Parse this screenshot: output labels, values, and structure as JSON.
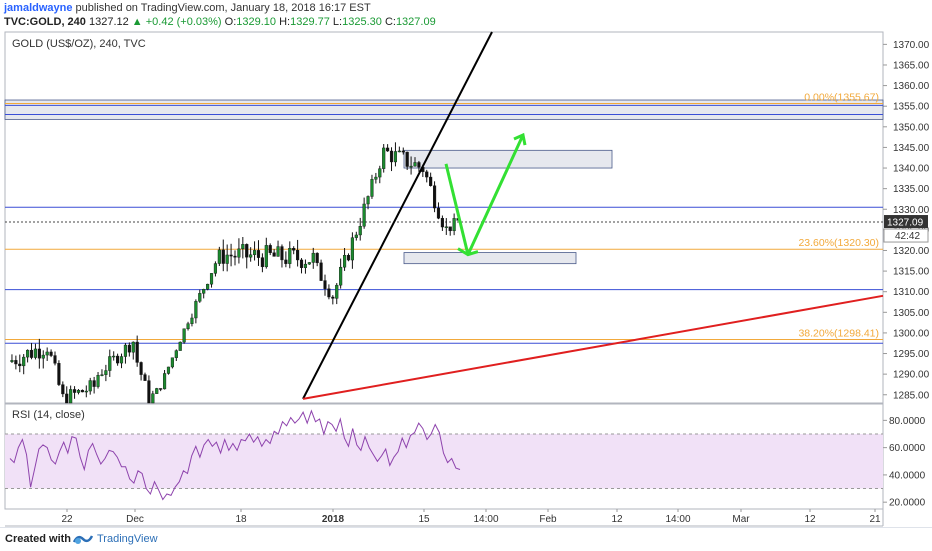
{
  "header": {
    "author": "jamaldwayne",
    "published_text": " published on TradingView.com, January 18, 2018 16:17 EST"
  },
  "ohlc": {
    "symbol": "TVC:GOLD, 240",
    "last": "1327.12",
    "change": "▲ +0.42 (+0.03%)",
    "o_label": "O:",
    "o": "1329.10",
    "h_label": "H:",
    "h": "1329.77",
    "l_label": "L:",
    "l": "1325.30",
    "c_label": "C:",
    "c": "1327.09"
  },
  "pane_title": "GOLD (US$/OZ), 240, TVC",
  "rsi_title": "RSI (14, close)",
  "footer": {
    "created": "Created with",
    "brand": "TradingView"
  },
  "colors": {
    "candle_up": "#1b8a2e",
    "candle_down": "#111111",
    "trendline": "#000000",
    "support_line": "#e01f1f",
    "arrow": "#33e033",
    "hline": "#3a4fd6",
    "fib": "#f2a93b",
    "rsi_line": "#8e44ad",
    "rsi_fill": "#f1e1f7"
  },
  "chart_data": [
    {
      "type": "candlestick",
      "title": "GOLD (US$/OZ), 240, TVC",
      "ylim": [
        1283,
        1373
      ],
      "y_ticks": [
        1285,
        1290,
        1295,
        1300,
        1305,
        1310,
        1315,
        1320,
        1325,
        1330,
        1335,
        1340,
        1345,
        1350,
        1355,
        1360,
        1365,
        1370
      ],
      "x_tick_labels": [
        "22",
        "Dec",
        "18",
        "2018",
        "15",
        "14:00",
        "Feb",
        "12",
        "14:00",
        "Mar",
        "12",
        "21"
      ],
      "last_price_label": "1327.09",
      "countdown_label": "42:42",
      "candle_segments": [
        {
          "from": 1293.0,
          "to": 1297.0,
          "vol": 2.6,
          "n": 10
        },
        {
          "from": 1297.0,
          "to": 1284.0,
          "vol": 2.2,
          "n": 4
        },
        {
          "from": 1284.0,
          "to": 1287.0,
          "vol": 2.0,
          "n": 8
        },
        {
          "from": 1289.0,
          "to": 1298.0,
          "vol": 1.8,
          "n": 10
        },
        {
          "from": 1296.0,
          "to": 1284.0,
          "vol": 1.8,
          "n": 4
        },
        {
          "from": 1284.0,
          "to": 1286.0,
          "vol": 0.8,
          "n": 2
        },
        {
          "from": 1285.0,
          "to": 1303.0,
          "vol": 1.0,
          "n": 8
        },
        {
          "from": 1303.0,
          "to": 1319.0,
          "vol": 1.4,
          "n": 8
        },
        {
          "from": 1319.0,
          "to": 1318.0,
          "vol": 2.8,
          "n": 24
        },
        {
          "from": 1317.0,
          "to": 1309.0,
          "vol": 2.0,
          "n": 5
        },
        {
          "from": 1309.0,
          "to": 1330.0,
          "vol": 2.2,
          "n": 8
        },
        {
          "from": 1330.0,
          "to": 1344.0,
          "vol": 1.8,
          "n": 5
        },
        {
          "from": 1344.0,
          "to": 1340.0,
          "vol": 2.4,
          "n": 10
        },
        {
          "from": 1340.0,
          "to": 1325.0,
          "vol": 2.2,
          "n": 6
        },
        {
          "from": 1325.0,
          "to": 1327.1,
          "vol": 1.4,
          "n": 3
        }
      ],
      "horizontal_levels": [
        1355.2,
        1353.0,
        1330.5,
        1326.9,
        1310.5,
        1297.5
      ],
      "fib_levels": [
        {
          "label": "0.00%(1355.67)",
          "value": 1355.67
        },
        {
          "label": "23.60%(1320.30)",
          "value": 1320.3
        },
        {
          "label": "38.20%(1298.41)",
          "value": 1298.41
        }
      ],
      "zones": [
        {
          "y_top": 1356.5,
          "y_bottom": 1351.8
        },
        {
          "y_top": 1344.3,
          "y_bottom": 1340.0
        },
        {
          "y_top": 1319.5,
          "y_bottom": 1316.8
        }
      ],
      "trendlines": [
        {
          "from": [
            "2018-01-01",
            1284.0
          ],
          "to": [
            "2018-01-20",
            1370.0
          ]
        },
        {
          "from": [
            "2017-12-30",
            1284.0
          ],
          "to": [
            "2018-03-20",
            1309.0
          ]
        }
      ],
      "projection_arrow": [
        1341.0,
        1319.0,
        1348.0
      ]
    },
    {
      "type": "line",
      "title": "RSI (14, close)",
      "ylim": [
        15,
        92
      ],
      "y_ticks": [
        20.0,
        40.0,
        60.0,
        80.0
      ],
      "y_tick_labels": [
        "20.0000",
        "40.0000",
        "60.0000",
        "80.0000"
      ],
      "band": [
        30,
        70
      ],
      "dashed_levels": [
        30,
        70
      ],
      "series": [
        {
          "values": [
            52,
            49,
            60,
            66,
            55,
            31,
            45,
            59,
            62,
            60,
            51,
            48,
            57,
            64,
            56,
            68,
            67,
            53,
            44,
            58,
            63,
            55,
            48,
            52,
            58,
            57,
            53,
            46,
            46,
            37,
            34,
            43,
            41,
            30,
            26,
            35,
            29,
            22,
            26,
            25,
            31,
            35,
            43,
            41,
            54,
            61,
            53,
            62,
            66,
            61,
            64,
            56,
            66,
            58,
            63,
            58,
            66,
            65,
            70,
            64,
            68,
            61,
            66,
            63,
            72,
            70,
            79,
            76,
            82,
            78,
            81,
            86,
            78,
            87,
            79,
            81,
            70,
            79,
            77,
            72,
            81,
            67,
            61,
            74,
            62,
            58,
            68,
            60,
            55,
            50,
            54,
            59,
            47,
            53,
            57,
            67,
            60,
            69,
            71,
            78,
            74,
            66,
            70,
            77,
            71,
            56,
            49,
            52,
            45,
            44
          ]
        }
      ]
    }
  ]
}
